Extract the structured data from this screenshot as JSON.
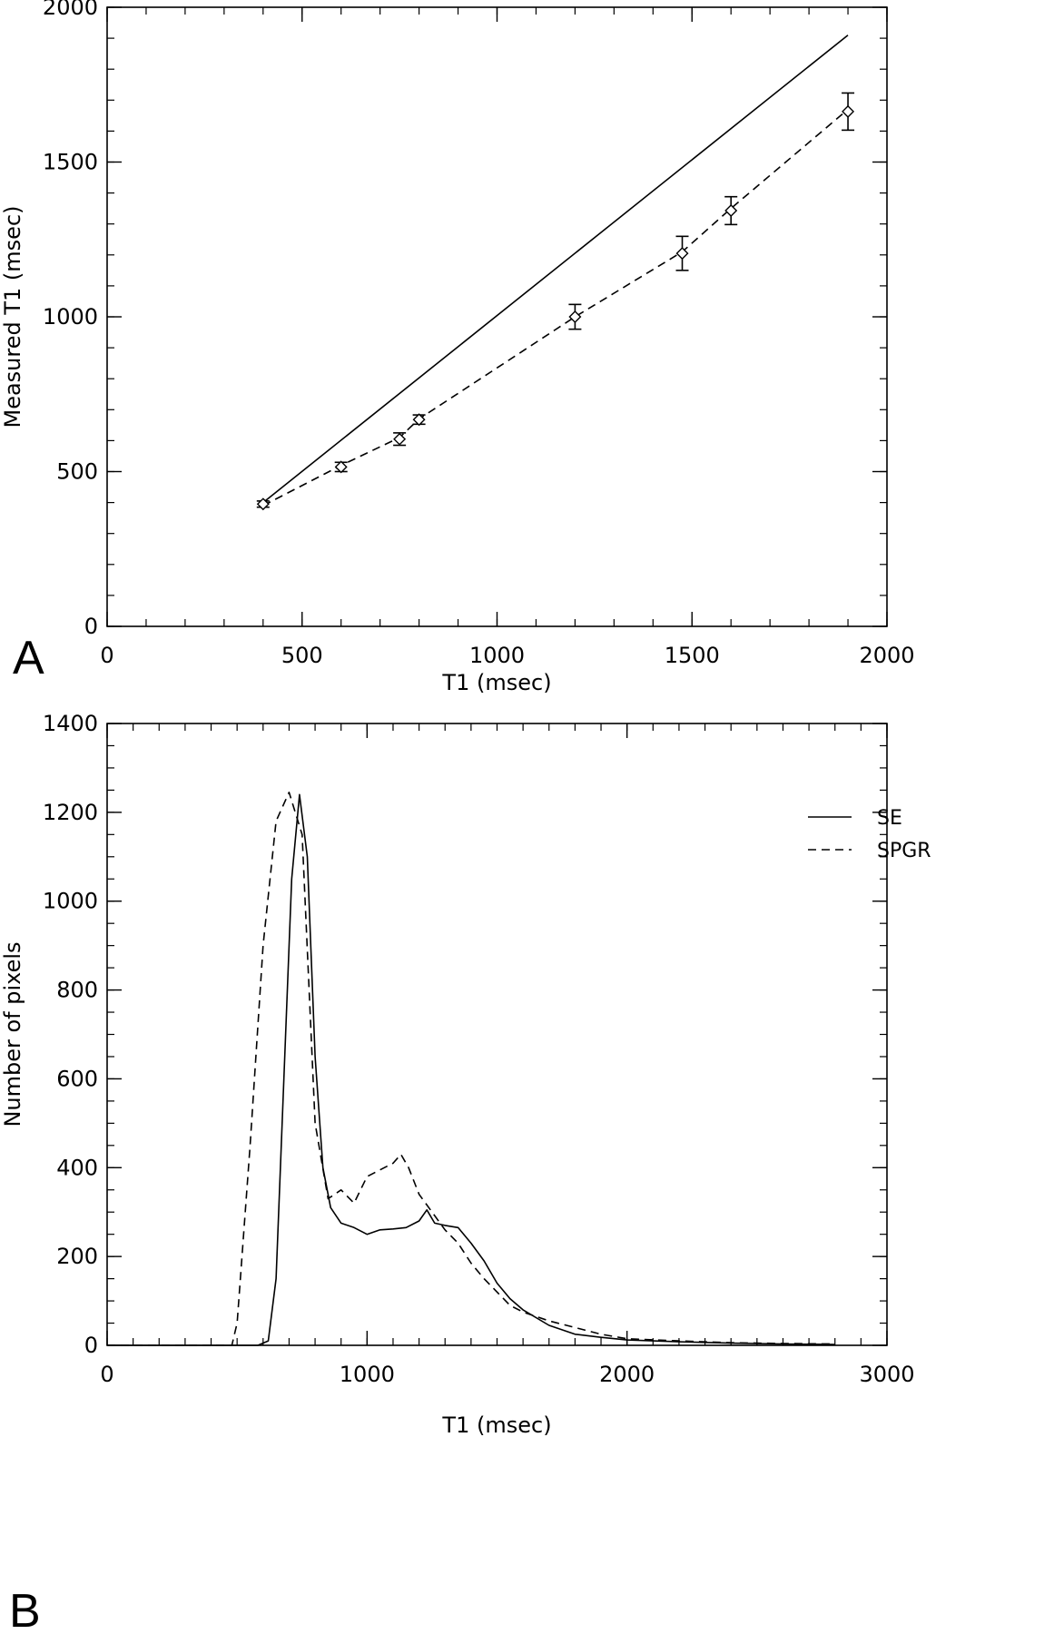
{
  "chart_data": [
    {
      "panel_label": "A",
      "type": "scatter",
      "xlabel": "T1 (msec)",
      "ylabel": "Measured T1 (msec)",
      "xlim": [
        0,
        2000
      ],
      "ylim": [
        0,
        2000
      ],
      "xticks": [
        0,
        500,
        1000,
        1500,
        2000
      ],
      "yticks": [
        0,
        500,
        1000,
        1500,
        2000
      ],
      "series": [
        {
          "style": "solid",
          "x": [
            400,
            1900
          ],
          "y": [
            400,
            1910
          ]
        },
        {
          "style": "dashed",
          "x": [
            400,
            600,
            750,
            800,
            1200,
            1475,
            1600,
            1900
          ],
          "y": [
            390,
            520,
            610,
            670,
            1000,
            1210,
            1350,
            1670
          ]
        }
      ],
      "points": [
        {
          "x": 400,
          "y": 395,
          "err": 10
        },
        {
          "x": 600,
          "y": 515,
          "err": 15
        },
        {
          "x": 750,
          "y": 605,
          "err": 20
        },
        {
          "x": 800,
          "y": 668,
          "err": 15
        },
        {
          "x": 1200,
          "y": 1000,
          "err": 40
        },
        {
          "x": 1475,
          "y": 1205,
          "err": 55
        },
        {
          "x": 1600,
          "y": 1343,
          "err": 45
        },
        {
          "x": 1900,
          "y": 1663,
          "err": 60
        }
      ]
    },
    {
      "panel_label": "B",
      "type": "line",
      "xlabel": "T1 (msec)",
      "ylabel": "Number of pixels",
      "xlim": [
        0,
        3000
      ],
      "ylim": [
        0,
        1400
      ],
      "xticks": [
        0,
        1000,
        2000,
        3000
      ],
      "yticks": [
        0,
        200,
        400,
        600,
        800,
        1000,
        1200,
        1400
      ],
      "legend_position": "top-right",
      "series": [
        {
          "name": "SE",
          "style": "solid",
          "x": [
            0,
            580,
            620,
            650,
            680,
            710,
            740,
            770,
            800,
            830,
            860,
            900,
            950,
            1000,
            1050,
            1100,
            1150,
            1200,
            1230,
            1260,
            1300,
            1350,
            1400,
            1450,
            1500,
            1550,
            1600,
            1700,
            1800,
            1900,
            2000,
            2200,
            2400,
            2600,
            2800
          ],
          "y": [
            0,
            0,
            10,
            150,
            600,
            1050,
            1240,
            1100,
            650,
            400,
            310,
            275,
            265,
            250,
            260,
            262,
            265,
            280,
            305,
            275,
            270,
            265,
            230,
            190,
            140,
            105,
            80,
            45,
            25,
            18,
            12,
            8,
            5,
            3,
            2
          ]
        },
        {
          "name": "SPGR",
          "style": "dashed",
          "x": [
            0,
            480,
            500,
            550,
            600,
            650,
            700,
            750,
            800,
            850,
            900,
            950,
            1000,
            1050,
            1100,
            1130,
            1160,
            1200,
            1250,
            1300,
            1350,
            1400,
            1450,
            1500,
            1550,
            1600,
            1700,
            1800,
            1900,
            2000,
            2200,
            2400,
            2600,
            2800
          ],
          "y": [
            0,
            0,
            50,
            450,
            900,
            1180,
            1245,
            1150,
            500,
            330,
            350,
            320,
            380,
            395,
            410,
            430,
            400,
            340,
            300,
            260,
            230,
            185,
            150,
            120,
            90,
            75,
            55,
            40,
            25,
            15,
            10,
            6,
            4,
            3
          ]
        }
      ]
    }
  ]
}
